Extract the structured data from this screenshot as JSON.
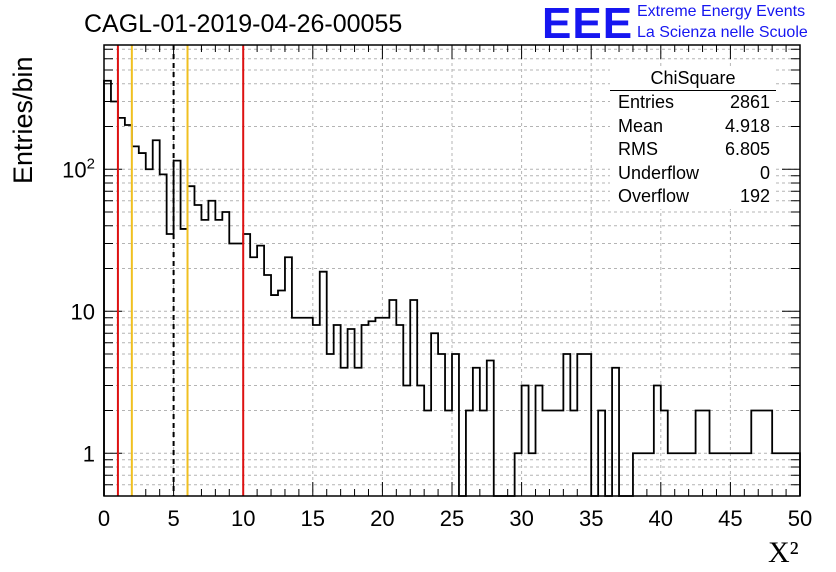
{
  "header": {
    "title": "CAGL-01-2019-04-26-00055",
    "logo_text": "EEE",
    "logo_line1": "Extreme Energy Events",
    "logo_line2": "La Scienza nelle Scuole"
  },
  "stats_box": {
    "title": "ChiSquare",
    "rows": [
      {
        "label": "Entries",
        "value": "2861"
      },
      {
        "label": "Mean",
        "value": "4.918"
      },
      {
        "label": "RMS",
        "value": "6.805"
      },
      {
        "label": "Underflow",
        "value": "0"
      },
      {
        "label": "Overflow",
        "value": "192"
      }
    ]
  },
  "colors": {
    "red_line": "#dd1111",
    "yellow_line": "#f0c020",
    "histogram": "#000000",
    "grid": "#b4b4b4",
    "logo": "#1616f0"
  },
  "chart_data": {
    "type": "histogram",
    "xlabel": "X²",
    "ylabel": "Entries/bin",
    "xlim": [
      0,
      50
    ],
    "ylim": [
      0.5,
      750
    ],
    "yscale": "log",
    "grid": true,
    "bin_width": 0.5,
    "x_ticks": [
      "0",
      "5",
      "10",
      "15",
      "20",
      "25",
      "30",
      "35",
      "40",
      "45",
      "50"
    ],
    "y_ticks": [
      {
        "value": 1,
        "label": "1"
      },
      {
        "value": 10,
        "label": "10"
      },
      {
        "value": 100,
        "label": "10²"
      }
    ],
    "bin_contents": [
      420,
      300,
      230,
      205,
      145,
      130,
      100,
      160,
      92,
      35,
      115,
      38,
      76,
      56,
      44,
      60,
      44,
      50,
      30,
      30,
      35,
      24,
      29,
      18,
      13,
      14,
      24,
      9,
      9,
      9,
      8,
      19,
      5,
      8,
      4,
      7.5,
      4,
      8,
      8.5,
      9,
      9,
      12,
      8,
      3,
      12,
      3,
      2,
      7,
      5,
      2,
      5,
      0,
      2,
      4,
      2,
      4.5,
      0,
      0,
      0,
      1,
      3,
      1,
      3,
      2,
      2,
      2,
      5,
      2,
      5,
      5,
      0,
      2,
      0,
      4,
      0,
      0,
      1,
      1,
      1,
      3,
      2,
      1,
      1,
      1,
      1,
      2,
      2,
      1,
      1,
      1,
      1,
      1,
      1,
      2,
      2,
      2,
      1,
      1,
      1,
      1
    ],
    "vertical_lines": [
      {
        "x": 1,
        "color": "red",
        "style": "solid"
      },
      {
        "x": 2,
        "color": "yellow",
        "style": "solid"
      },
      {
        "x": 5,
        "color": "black",
        "style": "dashed"
      },
      {
        "x": 6,
        "color": "yellow",
        "style": "solid"
      },
      {
        "x": 10,
        "color": "red",
        "style": "solid"
      }
    ]
  }
}
